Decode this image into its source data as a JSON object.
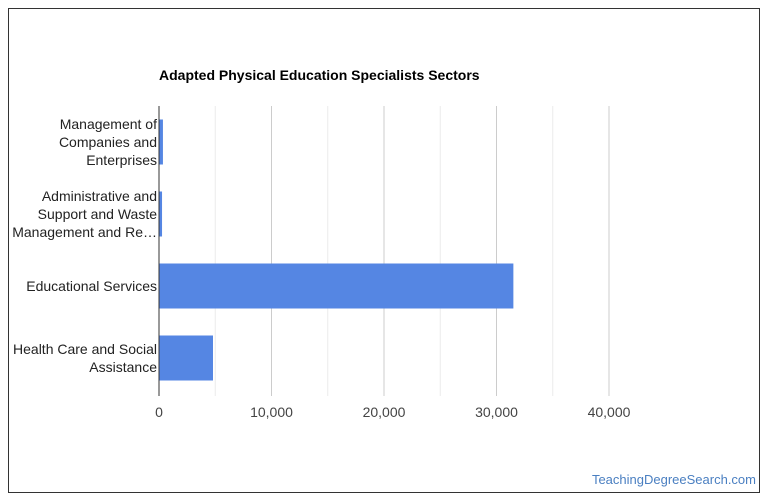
{
  "chart_data": {
    "type": "bar",
    "orientation": "horizontal",
    "title": "Adapted Physical Education Specialists Sectors",
    "categories": [
      [
        "Management of",
        "Companies and",
        "Enterprises"
      ],
      [
        "Administrative and",
        "Support and Waste",
        "Management and Re…"
      ],
      [
        "Educational Services"
      ],
      [
        "Health Care and Social",
        "Assistance"
      ]
    ],
    "values": [
      350,
      270,
      31500,
      4800
    ],
    "xlim": [
      0,
      50000
    ],
    "xticks": [
      0,
      10000,
      20000,
      30000,
      40000
    ],
    "xtick_labels": [
      "0",
      "10,000",
      "20,000",
      "30,000",
      "40,000"
    ],
    "bar_color": "#5586e3",
    "grid": true,
    "legend": "none"
  },
  "watermark": "TeachingDegreeSearch.com"
}
